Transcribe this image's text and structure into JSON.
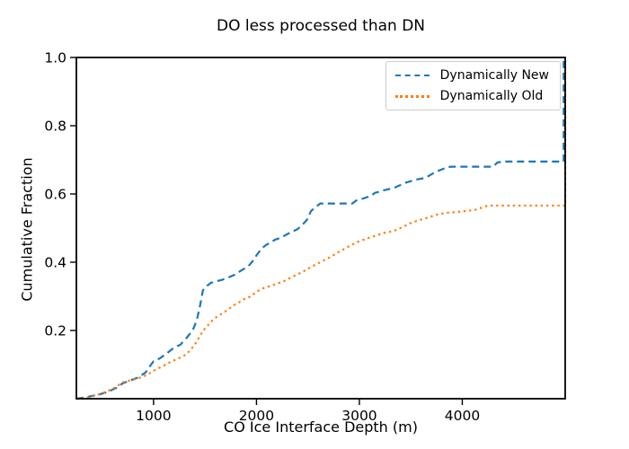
{
  "figure": {
    "background": "#ffffff",
    "frame_color": "#000000"
  },
  "chart_data": {
    "type": "line",
    "subtype": "cumulative-distribution",
    "title": "DO less processed than DN",
    "xlabel": "CO Ice Interface Depth (m)",
    "ylabel": "Cumulative Fraction",
    "xlim": [
      250,
      5000
    ],
    "ylim": [
      0,
      1.0
    ],
    "xticks": [
      1000,
      2000,
      3000,
      4000
    ],
    "yticks": [
      0.2,
      0.4,
      0.6,
      0.8,
      1.0
    ],
    "grid": false,
    "legend": {
      "position": "upper right",
      "border_color": "#cccccc",
      "background": "#ffffff"
    },
    "series": [
      {
        "name": "Dynamically New",
        "color": "#1f77b4",
        "linestyle": "dashed",
        "points": [
          [
            250,
            0
          ],
          [
            320,
            0.003
          ],
          [
            400,
            0.008
          ],
          [
            480,
            0.013
          ],
          [
            560,
            0.021
          ],
          [
            640,
            0.032
          ],
          [
            700,
            0.045
          ],
          [
            760,
            0.052
          ],
          [
            840,
            0.061
          ],
          [
            920,
            0.076
          ],
          [
            1000,
            0.11
          ],
          [
            1060,
            0.118
          ],
          [
            1120,
            0.131
          ],
          [
            1200,
            0.15
          ],
          [
            1260,
            0.158
          ],
          [
            1320,
            0.178
          ],
          [
            1380,
            0.2
          ],
          [
            1420,
            0.23
          ],
          [
            1450,
            0.27
          ],
          [
            1480,
            0.318
          ],
          [
            1520,
            0.331
          ],
          [
            1560,
            0.34
          ],
          [
            1610,
            0.344
          ],
          [
            1660,
            0.348
          ],
          [
            1700,
            0.352
          ],
          [
            1780,
            0.362
          ],
          [
            1870,
            0.379
          ],
          [
            1920,
            0.388
          ],
          [
            1960,
            0.402
          ],
          [
            2000,
            0.42
          ],
          [
            2050,
            0.44
          ],
          [
            2090,
            0.45
          ],
          [
            2140,
            0.458
          ],
          [
            2180,
            0.466
          ],
          [
            2230,
            0.471
          ],
          [
            2310,
            0.484
          ],
          [
            2400,
            0.497
          ],
          [
            2450,
            0.511
          ],
          [
            2490,
            0.524
          ],
          [
            2530,
            0.55
          ],
          [
            2580,
            0.563
          ],
          [
            2620,
            0.572
          ],
          [
            2930,
            0.572
          ],
          [
            2970,
            0.581
          ],
          [
            3020,
            0.585
          ],
          [
            3110,
            0.594
          ],
          [
            3150,
            0.603
          ],
          [
            3240,
            0.611
          ],
          [
            3330,
            0.617
          ],
          [
            3420,
            0.629
          ],
          [
            3460,
            0.634
          ],
          [
            3550,
            0.642
          ],
          [
            3640,
            0.647
          ],
          [
            3720,
            0.661
          ],
          [
            3770,
            0.668
          ],
          [
            3860,
            0.679
          ],
          [
            3900,
            0.68
          ],
          [
            4300,
            0.68
          ],
          [
            4340,
            0.692
          ],
          [
            4390,
            0.695
          ],
          [
            4985,
            0.695
          ],
          [
            4985,
            1.0
          ]
        ]
      },
      {
        "name": "Dynamically Old",
        "color": "#ff7f0e",
        "linestyle": "dotted",
        "points": [
          [
            300,
            0
          ],
          [
            380,
            0.005
          ],
          [
            460,
            0.012
          ],
          [
            540,
            0.02
          ],
          [
            620,
            0.032
          ],
          [
            700,
            0.048
          ],
          [
            780,
            0.054
          ],
          [
            860,
            0.061
          ],
          [
            940,
            0.07
          ],
          [
            1000,
            0.082
          ],
          [
            1080,
            0.094
          ],
          [
            1160,
            0.107
          ],
          [
            1240,
            0.118
          ],
          [
            1320,
            0.13
          ],
          [
            1400,
            0.158
          ],
          [
            1440,
            0.178
          ],
          [
            1480,
            0.199
          ],
          [
            1520,
            0.212
          ],
          [
            1560,
            0.226
          ],
          [
            1610,
            0.239
          ],
          [
            1650,
            0.247
          ],
          [
            1700,
            0.256
          ],
          [
            1740,
            0.265
          ],
          [
            1780,
            0.274
          ],
          [
            1830,
            0.282
          ],
          [
            1870,
            0.291
          ],
          [
            1920,
            0.296
          ],
          [
            1960,
            0.304
          ],
          [
            2000,
            0.313
          ],
          [
            2050,
            0.322
          ],
          [
            2090,
            0.326
          ],
          [
            2140,
            0.331
          ],
          [
            2180,
            0.335
          ],
          [
            2270,
            0.345
          ],
          [
            2360,
            0.359
          ],
          [
            2450,
            0.372
          ],
          [
            2530,
            0.386
          ],
          [
            2620,
            0.4
          ],
          [
            2710,
            0.414
          ],
          [
            2800,
            0.43
          ],
          [
            2890,
            0.445
          ],
          [
            2970,
            0.458
          ],
          [
            3060,
            0.468
          ],
          [
            3150,
            0.477
          ],
          [
            3240,
            0.486
          ],
          [
            3330,
            0.491
          ],
          [
            3420,
            0.503
          ],
          [
            3500,
            0.515
          ],
          [
            3590,
            0.524
          ],
          [
            3680,
            0.532
          ],
          [
            3770,
            0.541
          ],
          [
            3860,
            0.545
          ],
          [
            3940,
            0.547
          ],
          [
            4030,
            0.55
          ],
          [
            4120,
            0.553
          ],
          [
            4210,
            0.562
          ],
          [
            4250,
            0.566
          ],
          [
            5000,
            0.566
          ],
          [
            5000,
            1.0
          ]
        ]
      }
    ]
  }
}
